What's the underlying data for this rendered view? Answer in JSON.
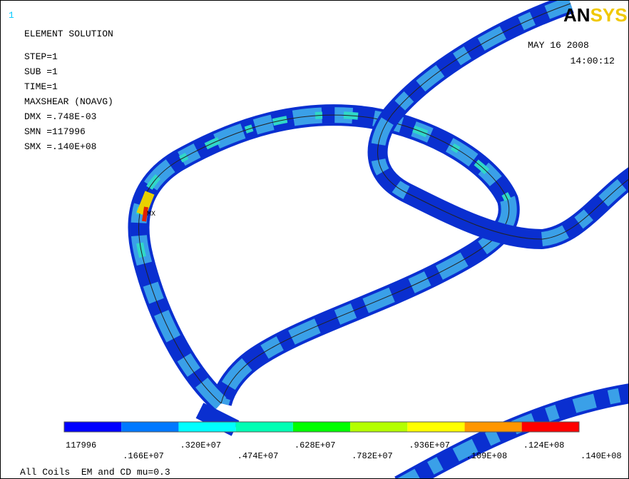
{
  "window_number": "1",
  "header": {
    "title": "ELEMENT SOLUTION",
    "lines": [
      "STEP=1",
      "SUB =1",
      "TIME=1",
      "MAXSHEAR (NOAVG)",
      "DMX =.748E-03",
      "SMN =117996",
      "SMX =.140E+08"
    ]
  },
  "date": "MAY 16 2008",
  "time": "14:00:12",
  "logo": {
    "dark": "AN",
    "light": "SYS"
  },
  "max_marker": "MX",
  "legend": {
    "colors": [
      "#0000ff",
      "#0078ff",
      "#00ffff",
      "#00ffb4",
      "#00ff00",
      "#b4ff00",
      "#ffff00",
      "#ff9600",
      "#ff0000"
    ],
    "labels": [
      "117996",
      ".166E+07",
      ".320E+07",
      ".474E+07",
      ".628E+07",
      ".782E+07",
      ".936E+07",
      ".109E+08",
      ".124E+08",
      ".140E+08"
    ]
  },
  "footer": "All Coils  EM and CD mu=0.3"
}
